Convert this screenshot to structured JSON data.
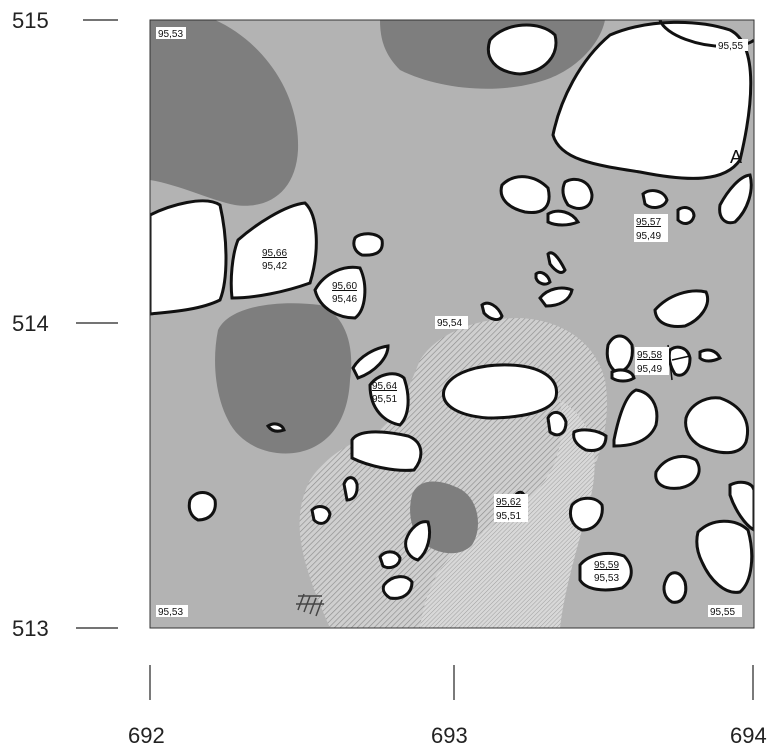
{
  "map": {
    "axes": {
      "y_labels": [
        "515",
        "514",
        "513"
      ],
      "x_labels": [
        "692",
        "693",
        "694"
      ]
    },
    "corner_elevations": {
      "top_left": "95,53",
      "top_right": "95,55",
      "bottom_left": "95,53",
      "bottom_right": "95,55"
    },
    "feature_label": "A",
    "spot_elevation": "95,54",
    "elevation_pairs": [
      {
        "top": "95,66",
        "bottom": "95,42"
      },
      {
        "top": "95,60",
        "bottom": "95,46"
      },
      {
        "top": "95,64",
        "bottom": "95,51"
      },
      {
        "top": "95,57",
        "bottom": "95,49"
      },
      {
        "top": "95,58",
        "bottom": "95,49"
      },
      {
        "top": "95,62",
        "bottom": "95,51"
      },
      {
        "top": "95,59",
        "bottom": "95,53"
      }
    ],
    "colors": {
      "background": "#b3b3b3",
      "dark_zone": "#7e7e7e",
      "hatched_zone": "#c9c9c9",
      "stone_fill": "#ffffff",
      "stone_outline": "#111111"
    }
  }
}
